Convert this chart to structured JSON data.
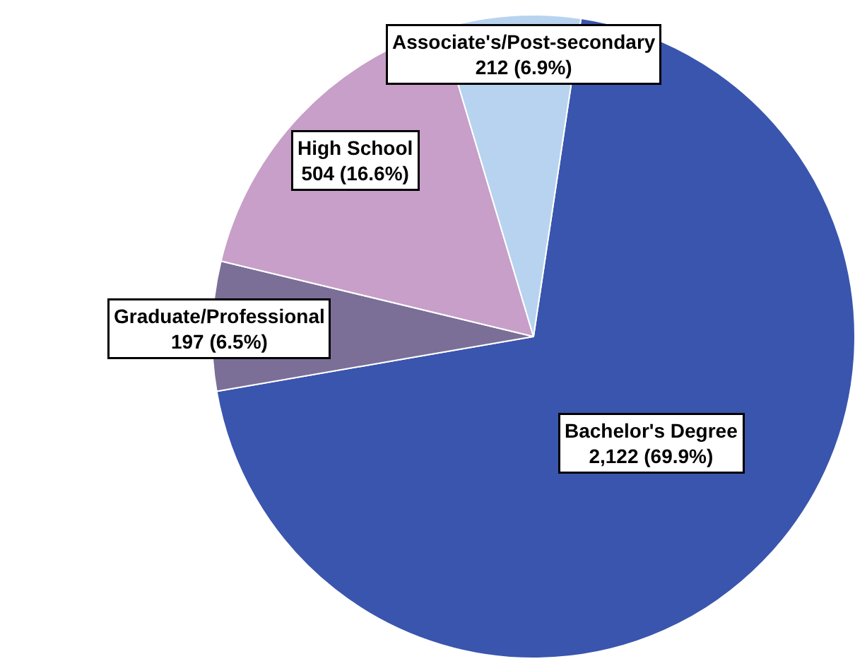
{
  "chart_data": {
    "type": "pie",
    "categories": [
      "Bachelor's Degree",
      "Graduate/Professional",
      "High School",
      "Associate's/Post-secondary"
    ],
    "values": [
      2122,
      197,
      504,
      212
    ],
    "colors": [
      "#3a55ad",
      "#7b6f98",
      "#c79fc8",
      "#b7d3ef"
    ],
    "value_labels": [
      "2,122 (69.9%)",
      "197 (6.5%)",
      "504 (16.6%)",
      "212 (6.9%)"
    ],
    "legend": false
  }
}
